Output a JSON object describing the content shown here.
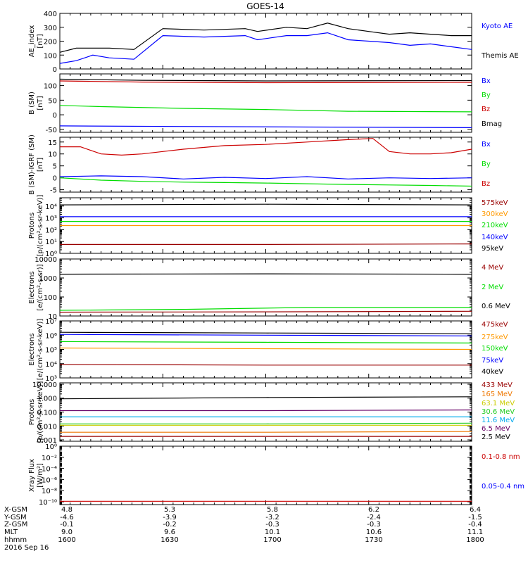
{
  "title": "GOES-14",
  "colors": {
    "black": "#000000",
    "blue": "#0000ff",
    "green": "#00dd00",
    "red": "#cc0000",
    "darkred": "#990000",
    "orange": "#ff9900",
    "orange2": "#ee7700",
    "yellow": "#cccc00",
    "lime": "#22cc22",
    "cyan": "#00aaee",
    "purple": "#660066"
  },
  "chart_data": [
    {
      "type": "line",
      "name": "ae",
      "ylabel": [
        "AE_index",
        "[nT]"
      ],
      "ylim": [
        0,
        400
      ],
      "yscale": "linear",
      "ticks": [
        {
          "v": 0,
          "l": "0"
        },
        {
          "v": 100,
          "l": "100"
        },
        {
          "v": 200,
          "l": "200"
        },
        {
          "v": 300,
          "l": "300"
        },
        {
          "v": 400,
          "l": "400"
        }
      ],
      "legend": [
        {
          "text": "Kyoto AE",
          "color": "blue"
        },
        {
          "text": "Themis AE",
          "color": "black"
        }
      ],
      "series": [
        {
          "color": "black",
          "x": [
            0,
            4,
            8,
            12,
            18,
            25,
            35,
            45,
            48,
            55,
            60,
            65,
            70,
            75,
            80,
            85,
            90,
            95,
            100
          ],
          "y": [
            120,
            150,
            150,
            150,
            140,
            290,
            280,
            290,
            270,
            300,
            290,
            330,
            290,
            270,
            250,
            260,
            250,
            240,
            240
          ]
        },
        {
          "color": "blue",
          "x": [
            0,
            4,
            8,
            12,
            18,
            25,
            35,
            45,
            48,
            55,
            60,
            65,
            70,
            75,
            80,
            85,
            90,
            95,
            100
          ],
          "y": [
            40,
            60,
            100,
            80,
            70,
            240,
            230,
            240,
            210,
            240,
            240,
            260,
            210,
            200,
            190,
            170,
            180,
            160,
            140
          ]
        }
      ]
    },
    {
      "type": "line",
      "name": "bsm",
      "ylabel": [
        "B (SM)",
        "[nT]"
      ],
      "ylim": [
        -60,
        140
      ],
      "yscale": "linear",
      "ticks": [
        {
          "v": -50,
          "l": "-50"
        },
        {
          "v": 0,
          "l": "0"
        },
        {
          "v": 50,
          "l": "50"
        },
        {
          "v": 100,
          "l": "100"
        }
      ],
      "legend": [
        {
          "text": "Bx",
          "color": "blue"
        },
        {
          "text": "By",
          "color": "green"
        },
        {
          "text": "Bz",
          "color": "red"
        },
        {
          "text": "Bmag",
          "color": "black"
        }
      ],
      "series": [
        {
          "color": "black",
          "x": [
            0,
            20,
            50,
            100
          ],
          "y": [
            122,
            118,
            116,
            117
          ]
        },
        {
          "color": "red",
          "x": [
            0,
            20,
            50,
            100
          ],
          "y": [
            116,
            112,
            110,
            111
          ]
        },
        {
          "color": "green",
          "x": [
            0,
            10,
            30,
            50,
            70,
            100
          ],
          "y": [
            32,
            28,
            22,
            18,
            12,
            10
          ]
        },
        {
          "color": "blue",
          "x": [
            0,
            30,
            60,
            100
          ],
          "y": [
            -38,
            -40,
            -42,
            -44
          ]
        }
      ]
    },
    {
      "type": "line",
      "name": "bdiff",
      "ylabel": [
        "B (SM)-IGRF (SM)",
        "[nT]"
      ],
      "ylim": [
        -6,
        17
      ],
      "yscale": "linear",
      "ticks": [
        {
          "v": -5,
          "l": "-5"
        },
        {
          "v": 0,
          "l": "0"
        },
        {
          "v": 5,
          "l": "5"
        },
        {
          "v": 10,
          "l": "10"
        },
        {
          "v": 15,
          "l": "15"
        }
      ],
      "legend": [
        {
          "text": "Bx",
          "color": "blue"
        },
        {
          "text": "By",
          "color": "green"
        },
        {
          "text": "Bz",
          "color": "red"
        }
      ],
      "series": [
        {
          "color": "red",
          "x": [
            0,
            5,
            10,
            15,
            20,
            25,
            30,
            40,
            50,
            60,
            70,
            76,
            80,
            85,
            90,
            95,
            100
          ],
          "y": [
            13,
            13,
            10,
            9.5,
            10,
            11,
            12,
            13.5,
            14,
            15,
            16,
            16.5,
            11,
            10,
            10,
            10.5,
            12
          ]
        },
        {
          "color": "blue",
          "x": [
            0,
            10,
            20,
            30,
            40,
            50,
            60,
            70,
            80,
            90,
            100
          ],
          "y": [
            0.5,
            0.8,
            0.5,
            -0.5,
            0.2,
            -0.3,
            0.5,
            -0.5,
            0,
            -0.3,
            0
          ]
        },
        {
          "color": "green",
          "x": [
            0,
            10,
            20,
            30,
            40,
            50,
            60,
            70,
            80,
            90,
            100
          ],
          "y": [
            0,
            -1,
            -1.5,
            -1.8,
            -2,
            -2.2,
            -2.5,
            -2.8,
            -3,
            -3.2,
            -3.5
          ]
        }
      ]
    },
    {
      "type": "line",
      "name": "protons_low",
      "ylabel": [
        "Protons",
        "[p/(cm²-s-sr-keV)]"
      ],
      "ylim": [
        0,
        4.7
      ],
      "yscale": "log",
      "ticks": [
        {
          "v": 0,
          "l": "10⁰"
        },
        {
          "v": 1,
          "l": "10¹"
        },
        {
          "v": 2,
          "l": "10²"
        },
        {
          "v": 3,
          "l": "10³"
        },
        {
          "v": 4,
          "l": "10⁴"
        }
      ],
      "legend": [
        {
          "text": "575keV",
          "color": "darkred"
        },
        {
          "text": "300keV",
          "color": "orange"
        },
        {
          "text": "210keV",
          "color": "green"
        },
        {
          "text": "140keV",
          "color": "blue"
        },
        {
          "text": "95keV",
          "color": "black"
        }
      ],
      "series": [
        {
          "color": "black",
          "x": [
            0,
            50,
            100
          ],
          "y": [
            4.1,
            4.15,
            4.1
          ]
        },
        {
          "color": "blue",
          "x": [
            0,
            50,
            100
          ],
          "y": [
            3.1,
            3.1,
            3.1
          ]
        },
        {
          "color": "green",
          "x": [
            0,
            50,
            100
          ],
          "y": [
            2.7,
            2.7,
            2.7
          ]
        },
        {
          "color": "orange",
          "x": [
            0,
            50,
            100
          ],
          "y": [
            2.35,
            2.35,
            2.35
          ]
        },
        {
          "color": "darkred",
          "x": [
            0,
            50,
            100
          ],
          "y": [
            0.75,
            0.75,
            0.8
          ]
        }
      ]
    },
    {
      "type": "line",
      "name": "electrons_mev",
      "ylabel": [
        "Electrons",
        "[e/(cm²-s-sr)]"
      ],
      "ylim": [
        1,
        4
      ],
      "yscale": "log",
      "ticks": [
        {
          "v": 1,
          "l": "10"
        },
        {
          "v": 2,
          "l": "100"
        },
        {
          "v": 3,
          "l": "1000"
        },
        {
          "v": 4,
          "l": "10000"
        }
      ],
      "legend": [
        {
          "text": "4 MeV",
          "color": "darkred"
        },
        {
          "text": "2 MeV",
          "color": "green"
        },
        {
          "text": "0.6 MeV",
          "color": "black"
        }
      ],
      "series": [
        {
          "color": "black",
          "x": [
            0,
            50,
            100
          ],
          "y": [
            3.2,
            3.22,
            3.2
          ]
        },
        {
          "color": "green",
          "x": [
            0,
            30,
            60,
            100
          ],
          "y": [
            1.3,
            1.35,
            1.45,
            1.45
          ]
        },
        {
          "color": "darkred",
          "x": [
            0,
            50,
            100
          ],
          "y": [
            1.2,
            1.22,
            1.25
          ]
        }
      ]
    },
    {
      "type": "line",
      "name": "electrons_kev",
      "ylabel": [
        "Electrons",
        "[e/(cm²-s-sr-keV)]"
      ],
      "ylim": [
        3,
        7
      ],
      "yscale": "log",
      "ticks": [
        {
          "v": 3,
          "l": "10³"
        },
        {
          "v": 4,
          "l": "10⁴"
        },
        {
          "v": 5,
          "l": "10⁵"
        },
        {
          "v": 6,
          "l": "10⁶"
        },
        {
          "v": 7,
          "l": "10⁷"
        }
      ],
      "legend": [
        {
          "text": "475keV",
          "color": "darkred"
        },
        {
          "text": "275keV",
          "color": "orange"
        },
        {
          "text": "150keV",
          "color": "green"
        },
        {
          "text": "75keV",
          "color": "blue"
        },
        {
          "text": "40keV",
          "color": "black"
        }
      ],
      "series": [
        {
          "color": "black",
          "x": [
            0,
            50,
            100
          ],
          "y": [
            6.2,
            6.15,
            6.1
          ]
        },
        {
          "color": "blue",
          "x": [
            0,
            50,
            100
          ],
          "y": [
            6.05,
            6.0,
            5.95
          ]
        },
        {
          "color": "green",
          "x": [
            0,
            50,
            100
          ],
          "y": [
            5.55,
            5.5,
            5.45
          ]
        },
        {
          "color": "orange",
          "x": [
            0,
            50,
            100
          ],
          "y": [
            5.1,
            5.05,
            5.0
          ]
        },
        {
          "color": "darkred",
          "x": [
            0,
            50,
            100
          ],
          "y": [
            3.95,
            3.9,
            3.9
          ]
        }
      ]
    },
    {
      "type": "line",
      "name": "protons_mev",
      "ylabel": [
        "Protons",
        "[p/(cm²-s-sr-keV)]"
      ],
      "ylim": [
        -3.1,
        1.1
      ],
      "yscale": "log",
      "ticks": [
        {
          "v": -3,
          "l": "0.001"
        },
        {
          "v": -2,
          "l": "0.010"
        },
        {
          "v": -1,
          "l": "0.100"
        },
        {
          "v": 0,
          "l": "1.000"
        },
        {
          "v": 1,
          "l": "10.000"
        }
      ],
      "legend": [
        {
          "text": "433 MeV",
          "color": "darkred"
        },
        {
          "text": "165 MeV",
          "color": "orange2"
        },
        {
          "text": "63.1 MeV",
          "color": "yellow"
        },
        {
          "text": "30.6 MeV",
          "color": "lime"
        },
        {
          "text": "11.6 MeV",
          "color": "cyan"
        },
        {
          "text": "6.5 MeV",
          "color": "purple"
        },
        {
          "text": "2.5 MeV",
          "color": "black"
        }
      ],
      "series": [
        {
          "color": "black",
          "x": [
            0,
            50,
            100
          ],
          "y": [
            -0.05,
            0.05,
            0.1
          ]
        },
        {
          "color": "purple",
          "x": [
            0,
            50,
            100
          ],
          "y": [
            -0.9,
            -0.9,
            -0.85
          ]
        },
        {
          "color": "cyan",
          "x": [
            0,
            50,
            100
          ],
          "y": [
            -1.35,
            -1.35,
            -1.35
          ]
        },
        {
          "color": "lime",
          "x": [
            0,
            50,
            100
          ],
          "y": [
            -1.85,
            -1.85,
            -1.8
          ]
        },
        {
          "color": "yellow",
          "x": [
            0,
            50,
            100
          ],
          "y": [
            -1.95,
            -1.95,
            -1.95
          ]
        },
        {
          "color": "orange2",
          "x": [
            0,
            50,
            100
          ],
          "y": [
            -2.45,
            -2.45,
            -2.4
          ]
        },
        {
          "color": "darkred",
          "x": [
            0,
            50,
            100
          ],
          "y": [
            -2.75,
            -2.75,
            -2.75
          ]
        }
      ]
    },
    {
      "type": "line",
      "name": "xray",
      "ylabel": [
        "Xray Flux",
        "[W/m²]"
      ],
      "ylim": [
        -10.5,
        0
      ],
      "yscale": "log",
      "ticks": [
        {
          "v": 0,
          "l": "10⁰"
        },
        {
          "v": -2,
          "l": "10⁻²"
        },
        {
          "v": -4,
          "l": "10⁻⁴"
        },
        {
          "v": -6,
          "l": "10⁻⁶"
        },
        {
          "v": -8,
          "l": "10⁻⁸"
        },
        {
          "v": -10,
          "l": "10⁻¹⁰"
        }
      ],
      "legend": [
        {
          "text": "0.1-0.8 nm",
          "color": "red"
        },
        {
          "text": "0.05-0.4 nm",
          "color": "blue"
        }
      ],
      "series": [
        {
          "color": "red",
          "x": [
            0,
            100
          ],
          "y": [
            -9.9,
            -9.9
          ]
        }
      ]
    }
  ],
  "axis_table": {
    "row_labels": [
      "X-GSM",
      "Y-GSM",
      "Z-GSM",
      "MLT",
      "hhmm"
    ],
    "columns": [
      [
        "4.8",
        "-4.6",
        "-0.1",
        "9.0",
        "1600"
      ],
      [
        "5.3",
        "-3.9",
        "-0.2",
        "9.6",
        "1630"
      ],
      [
        "5.8",
        "-3.2",
        "-0.3",
        "10.1",
        "1700"
      ],
      [
        "6.2",
        "-2.4",
        "-0.3",
        "10.6",
        "1730"
      ],
      [
        "6.4",
        "-1.5",
        "-0.4",
        "11.1",
        "1800"
      ]
    ],
    "date": "2016 Sep 16"
  }
}
